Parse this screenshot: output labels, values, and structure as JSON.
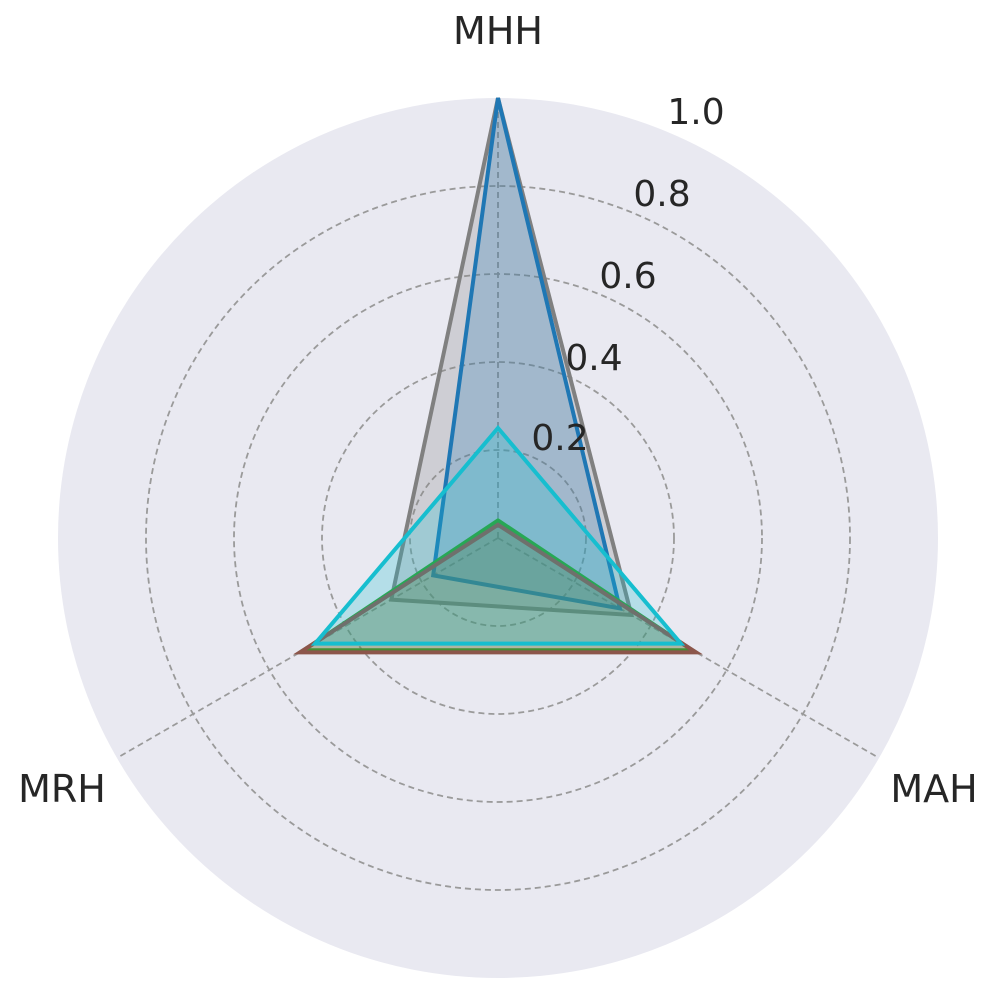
{
  "chart_data": {
    "type": "radar",
    "axes": [
      "MHH",
      "MAH",
      "MRH"
    ],
    "rlim": [
      0,
      1.0
    ],
    "rticks": [
      "0.2",
      "0.4",
      "0.6",
      "0.8",
      "1.0"
    ],
    "grid": true,
    "series": [
      {
        "color": "#808080",
        "values": [
          1.0,
          0.35,
          0.28
        ]
      },
      {
        "color": "#1f77b4",
        "values": [
          1.0,
          0.32,
          0.17
        ]
      },
      {
        "color": "#2ca02c",
        "values": [
          0.04,
          0.51,
          0.51
        ]
      },
      {
        "color": "#8c564b",
        "values": [
          0.03,
          0.52,
          0.52
        ]
      },
      {
        "color": "#17becf",
        "values": [
          0.25,
          0.48,
          0.48
        ]
      }
    ],
    "colors": {
      "background": "#e9e9f1",
      "grid": "#9a9a9a"
    }
  }
}
